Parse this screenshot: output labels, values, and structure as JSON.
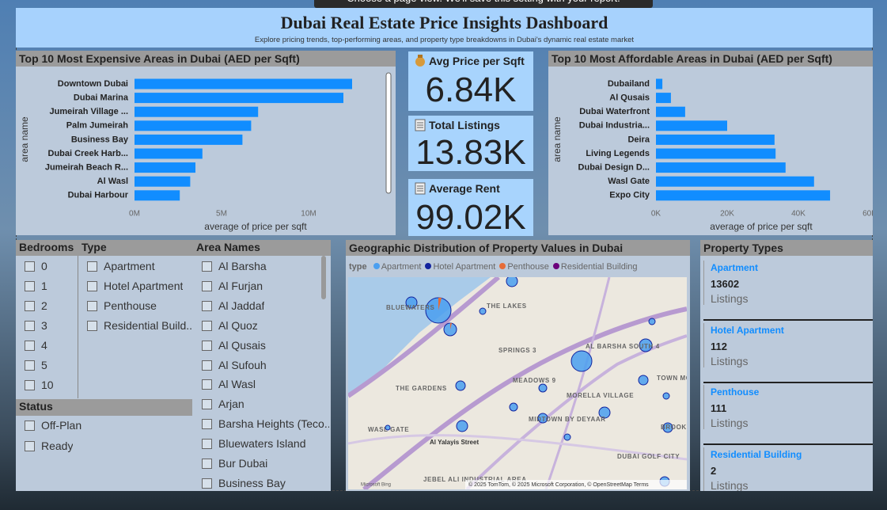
{
  "top_banner": "Choose a page view. We'll save this setting with your report.",
  "header": {
    "title": "Dubai Real Estate Price Insights Dashboard",
    "subtitle": "Explore pricing trends, top-performing areas, and property type breakdowns in Dubai's dynamic real estate market"
  },
  "chart_data": [
    {
      "type": "bar",
      "orientation": "horizontal",
      "title": "Top 10 Most Expensive Areas in Dubai (AED per Sqft)",
      "y_label": "area name",
      "x_label": "average of price per sqft",
      "color": "#118DFF",
      "categories": [
        "Downtown Dubai",
        "Dubai Marina",
        "Jumeirah Village ...",
        "Palm Jumeirah",
        "Business Bay",
        "Dubai Creek Harb...",
        "Jumeirah Beach R...",
        "Al Wasl",
        "Dubai Harbour"
      ],
      "values": [
        12500000,
        12000000,
        7100000,
        6700000,
        6200000,
        3900000,
        3500000,
        3200000,
        2600000
      ],
      "xlim": [
        0,
        14000000
      ],
      "xticks": [
        {
          "value": 0,
          "label": "0M"
        },
        {
          "value": 5000000,
          "label": "5M"
        },
        {
          "value": 10000000,
          "label": "10M"
        }
      ]
    },
    {
      "type": "bar",
      "orientation": "horizontal",
      "title": "Top 10 Most Affordable Areas in Dubai (AED per Sqft)",
      "y_label": "area name",
      "x_label": "average of price per sqft",
      "color": "#118DFF",
      "categories": [
        "Dubailand",
        "Al Qusais",
        "Dubai Waterfront",
        "Dubai Industria...",
        "Deira",
        "Living Legends",
        "Dubai Design D...",
        "Wasl Gate",
        "Expo City"
      ],
      "values": [
        1800,
        4200,
        8200,
        20000,
        33300,
        33600,
        36400,
        44400,
        48900
      ],
      "xlim": [
        0,
        60000
      ],
      "xticks": [
        {
          "value": 0,
          "label": "0K"
        },
        {
          "value": 20000,
          "label": "20K"
        },
        {
          "value": 40000,
          "label": "40K"
        },
        {
          "value": 60000,
          "label": "60K"
        }
      ]
    }
  ],
  "cards": [
    {
      "label": "Avg Price per Sqft",
      "value": "6.84K"
    },
    {
      "label": "Total Listings",
      "value": "13.83K"
    },
    {
      "label": "Average Rent",
      "value": "99.02K"
    }
  ],
  "slicers": {
    "bedrooms": {
      "title": "Bedrooms",
      "items": [
        "0",
        "1",
        "2",
        "3",
        "4",
        "5",
        "10"
      ]
    },
    "type": {
      "title": "Type",
      "items": [
        "Apartment",
        "Hotel Apartment",
        "Penthouse",
        "Residential Build..."
      ]
    },
    "area_names": {
      "title": "Area Names",
      "items": [
        "Al Barsha",
        "Al Furjan",
        "Al Jaddaf",
        "Al Quoz",
        "Al Qusais",
        "Al Sufouh",
        "Al Wasl",
        "Arjan",
        "Barsha Heights (Teco...",
        "Bluewaters Island",
        "Bur Dubai",
        "Business Bay"
      ]
    },
    "status": {
      "title": "Status",
      "items": [
        "Off-Plan",
        "Ready"
      ]
    }
  },
  "map": {
    "title": "Geographic Distribution of Property Values in Dubai",
    "legend_title": "type",
    "legend": [
      {
        "name": "Apartment",
        "color": "#4A9FF0"
      },
      {
        "name": "Hotel Apartment",
        "color": "#12239E"
      },
      {
        "name": "Penthouse",
        "color": "#E66C37"
      },
      {
        "name": "Residential Building",
        "color": "#6B007B"
      }
    ],
    "labels": [
      "BLUEWATERS",
      "THE LAKES",
      "SPRINGS 3",
      "AL BARSHA SOUTH 4",
      "MEADOWS 9",
      "THE GARDENS",
      "MORELLA VILLAGE",
      "TOWN MOTOR CITY",
      "MIDTOWN BY DEYAAR",
      "WASL GATE",
      "Al Yalayis Street",
      "BROOKFIELD",
      "DUBAI GOLF CITY",
      "JEBEL ALI INDUSTRIAL AREA"
    ],
    "logo": "Microsoft Bing",
    "attribution": "© 2025 TomTom, © 2025 Microsoft Corporation, © OpenStreetMap  Terms"
  },
  "property_types": {
    "title": "Property Types",
    "items": [
      {
        "name": "Apartment",
        "count": "13602",
        "unit": "Listings"
      },
      {
        "name": "Hotel Apartment",
        "count": "112",
        "unit": "Listings"
      },
      {
        "name": "Penthouse",
        "count": "111",
        "unit": "Listings"
      },
      {
        "name": "Residential Building",
        "count": "2",
        "unit": "Listings"
      }
    ]
  }
}
